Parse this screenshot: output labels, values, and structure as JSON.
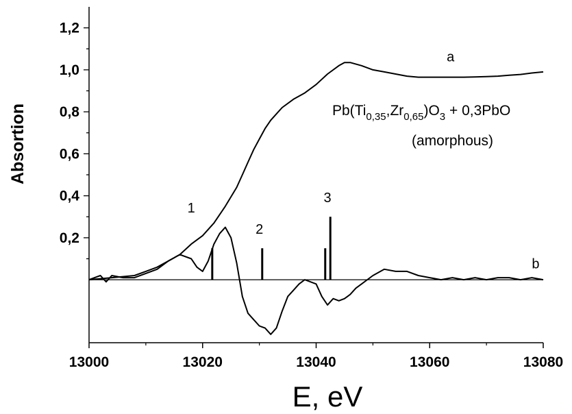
{
  "chart_data": {
    "type": "line",
    "xlabel": "E, eV",
    "ylabel": "Absortion",
    "xlim": [
      13000,
      13080
    ],
    "ylim": [
      -0.3,
      1.3
    ],
    "x_ticks": [
      "13000",
      "13020",
      "13040",
      "13060",
      "13080"
    ],
    "x_tick_values": [
      13000,
      13020,
      13040,
      13060,
      13080
    ],
    "y_ticks": [
      "0,2",
      "0,4",
      "0,6",
      "0,8",
      "1,0",
      "1,2"
    ],
    "y_tick_values": [
      0.2,
      0.4,
      0.6,
      0.8,
      1.0,
      1.2
    ],
    "grid": false,
    "sample_label": {
      "formula": {
        "pre": "Pb(Ti",
        "sub1": "0,35",
        "mid": ",Zr",
        "sub2": "0,65",
        "post": ")O",
        "sub3": "3",
        "tail": " + 0,3PbO"
      },
      "note": "(amorphous)"
    },
    "series": [
      {
        "name": "a",
        "label_x": 13063,
        "label_y": 1.04,
        "x": [
          13000,
          13004,
          13008,
          13010,
          13012,
          13014,
          13016,
          13018,
          13020,
          13022,
          13024,
          13026,
          13027,
          13028,
          13029,
          13030,
          13031,
          13032,
          13033,
          13034,
          13036,
          13038,
          13040,
          13042,
          13044,
          13045,
          13046,
          13048,
          13050,
          13052,
          13054,
          13056,
          13058,
          13060,
          13062,
          13064,
          13066,
          13068,
          13070,
          13072,
          13074,
          13076,
          13078,
          13080
        ],
        "y": [
          0.0,
          0.01,
          0.02,
          0.04,
          0.06,
          0.09,
          0.12,
          0.17,
          0.21,
          0.27,
          0.35,
          0.44,
          0.5,
          0.56,
          0.62,
          0.67,
          0.72,
          0.76,
          0.79,
          0.82,
          0.86,
          0.89,
          0.93,
          0.98,
          1.02,
          1.035,
          1.035,
          1.02,
          1.0,
          0.99,
          0.98,
          0.97,
          0.965,
          0.965,
          0.965,
          0.965,
          0.965,
          0.966,
          0.968,
          0.97,
          0.974,
          0.978,
          0.985,
          0.99
        ]
      },
      {
        "name": "b",
        "label_x": 13078,
        "label_y": 0.055,
        "x": [
          13000,
          13002,
          13003,
          13004,
          13006,
          13008,
          13010,
          13012,
          13013,
          13014,
          13016,
          13018,
          13019,
          13020,
          13021,
          13022,
          13023,
          13024,
          13025,
          13026,
          13027,
          13028,
          13029,
          13030,
          13031,
          13032,
          13033,
          13034,
          13035,
          13036,
          13037,
          13038,
          13039,
          13040,
          13041,
          13042,
          13043,
          13044,
          13045,
          13046,
          13047,
          13048,
          13050,
          13052,
          13054,
          13056,
          13058,
          13060,
          13062,
          13064,
          13066,
          13068,
          13070,
          13072,
          13074,
          13076,
          13078,
          13080
        ],
        "y": [
          0.0,
          0.02,
          -0.01,
          0.02,
          0.01,
          0.01,
          0.03,
          0.05,
          0.07,
          0.09,
          0.12,
          0.1,
          0.06,
          0.04,
          0.09,
          0.17,
          0.22,
          0.25,
          0.2,
          0.08,
          -0.08,
          -0.16,
          -0.19,
          -0.22,
          -0.23,
          -0.26,
          -0.23,
          -0.15,
          -0.08,
          -0.05,
          -0.02,
          0.0,
          -0.01,
          -0.02,
          -0.08,
          -0.12,
          -0.09,
          -0.1,
          -0.09,
          -0.07,
          -0.04,
          -0.02,
          0.02,
          0.05,
          0.04,
          0.04,
          0.02,
          0.01,
          0.0,
          0.01,
          0.0,
          0.01,
          0.0,
          0.01,
          0.01,
          0.0,
          0.01,
          0.0
        ]
      }
    ],
    "markers": [
      {
        "x": 13021.7,
        "y0": 0,
        "y1": 0.15
      },
      {
        "x": 13030.5,
        "y0": 0,
        "y1": 0.15
      },
      {
        "x": 13041.6,
        "y0": 0,
        "y1": 0.15
      },
      {
        "x": 13042.5,
        "y0": 0,
        "y1": 0.3
      }
    ],
    "marker_labels": [
      {
        "text": "1",
        "x": 13018,
        "y": 0.32
      },
      {
        "text": "2",
        "x": 13030,
        "y": 0.22
      },
      {
        "text": "3",
        "x": 13042,
        "y": 0.37
      }
    ]
  }
}
